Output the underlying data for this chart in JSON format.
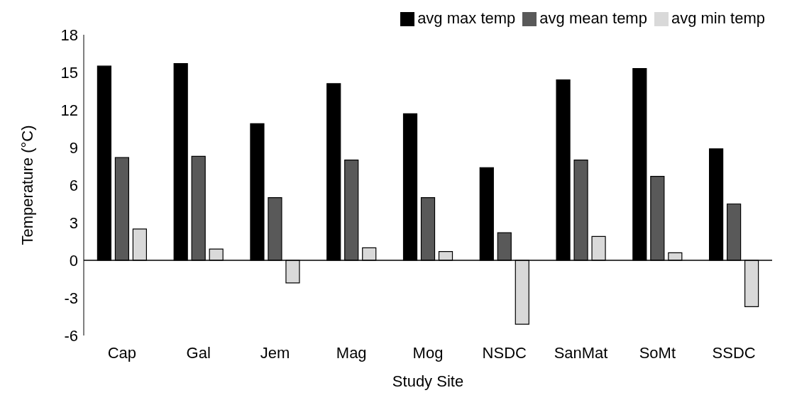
{
  "chart_data": {
    "type": "bar",
    "xlabel": "Study Site",
    "ylabel": "Temperature (°C)",
    "categories": [
      "Cap",
      "Gal",
      "Jem",
      "Mag",
      "Mog",
      "NSDC",
      "SanMat",
      "SoMt",
      "SSDC"
    ],
    "series": [
      {
        "name": "avg max temp",
        "color": "#000000",
        "values": [
          15.5,
          15.7,
          10.9,
          14.1,
          11.7,
          7.4,
          14.4,
          15.3,
          8.9
        ]
      },
      {
        "name": "avg mean temp",
        "color": "#595959",
        "values": [
          8.2,
          8.3,
          5.0,
          8.0,
          5.0,
          2.2,
          8.0,
          6.7,
          4.5
        ]
      },
      {
        "name": "avg min temp",
        "color": "#d9d9d9",
        "values": [
          2.5,
          0.9,
          -1.8,
          1.0,
          0.7,
          -5.1,
          1.9,
          0.6,
          -3.7
        ]
      }
    ],
    "ylim": [
      -6,
      18
    ],
    "yticks": [
      -6,
      -3,
      0,
      3,
      6,
      9,
      12,
      15,
      18
    ],
    "legend": "top right"
  }
}
